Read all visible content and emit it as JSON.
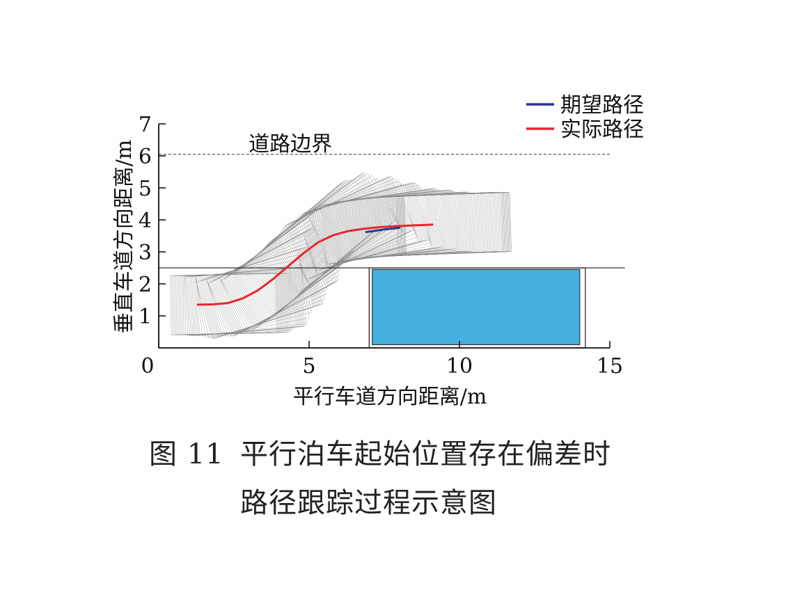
{
  "figure_caption": {
    "number": "图 11",
    "line1": "平行泊车起始位置存在偏差时",
    "line2": "路径跟踪过程示意图"
  },
  "chart_data": {
    "type": "line",
    "xlabel": "平行车道方向距离/m",
    "ylabel": "垂直车道方向距离/m",
    "xlim": [
      0,
      15
    ],
    "ylim": [
      0,
      7
    ],
    "x_ticks": [
      0,
      5,
      10,
      15
    ],
    "y_ticks": [
      1,
      2,
      3,
      4,
      5,
      6,
      7
    ],
    "grid": false,
    "legend_position": "top-right",
    "colors": {
      "expected": "#2b3990",
      "actual": "#e8262c",
      "parked_car": "#45b0dd",
      "sweep": "#8a8a8a"
    },
    "series": [
      {
        "name": "期望路径",
        "color": "#2b3990",
        "x": [
          6.9,
          7.2,
          7.5,
          7.8,
          8.0
        ],
        "y": [
          3.62,
          3.66,
          3.7,
          3.73,
          3.75
        ]
      },
      {
        "name": "实际路径",
        "color": "#e8262c",
        "x": [
          1.3,
          1.8,
          2.3,
          2.8,
          3.3,
          3.8,
          4.3,
          4.8,
          5.3,
          5.8,
          6.3,
          6.8,
          7.3,
          7.8,
          8.3,
          8.8,
          9.1
        ],
        "y": [
          1.35,
          1.36,
          1.4,
          1.55,
          1.8,
          2.15,
          2.55,
          2.95,
          3.3,
          3.52,
          3.65,
          3.72,
          3.77,
          3.8,
          3.82,
          3.84,
          3.85
        ]
      }
    ],
    "annotations": [
      {
        "text": "道路边界",
        "x": 6.6,
        "y": 6.5
      }
    ],
    "road_boundary_y": 6.05,
    "parking_space": {
      "x": [
        0,
        7
      ],
      "y": [
        0,
        2.5
      ],
      "curb_y": 2.5,
      "curb_x_end": 15.5
    },
    "parked_car": {
      "x": [
        7.1,
        14.0
      ],
      "y": [
        0.1,
        2.45
      ]
    }
  }
}
